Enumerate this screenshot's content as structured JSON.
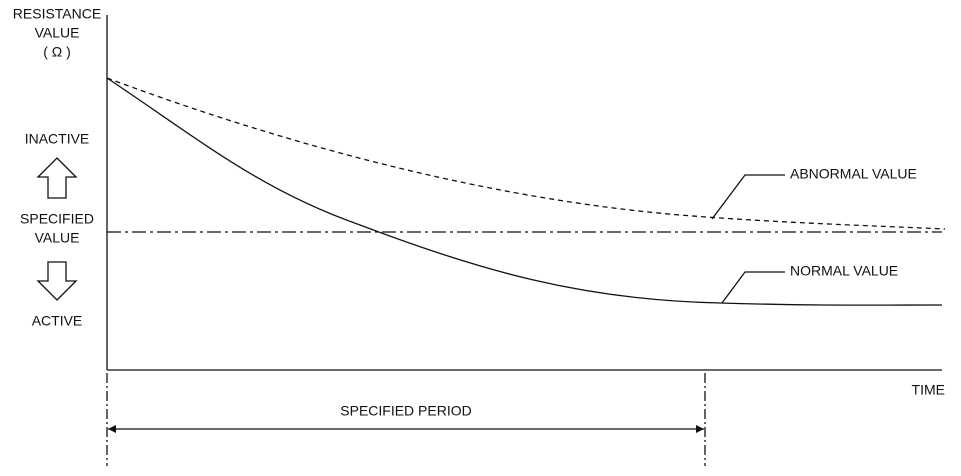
{
  "y_axis": {
    "label_lines": [
      "RESISTANCE",
      "VALUE",
      "( Ω )"
    ]
  },
  "levels": {
    "inactive": "INACTIVE",
    "specified_lines": [
      "SPECIFIED",
      "VALUE"
    ],
    "active": "ACTIVE"
  },
  "curves": {
    "abnormal": "ABNORMAL VALUE",
    "normal": "NORMAL VALUE"
  },
  "x_axis": {
    "label": "TIME"
  },
  "period": {
    "label": "SPECIFIED PERIOD"
  }
}
